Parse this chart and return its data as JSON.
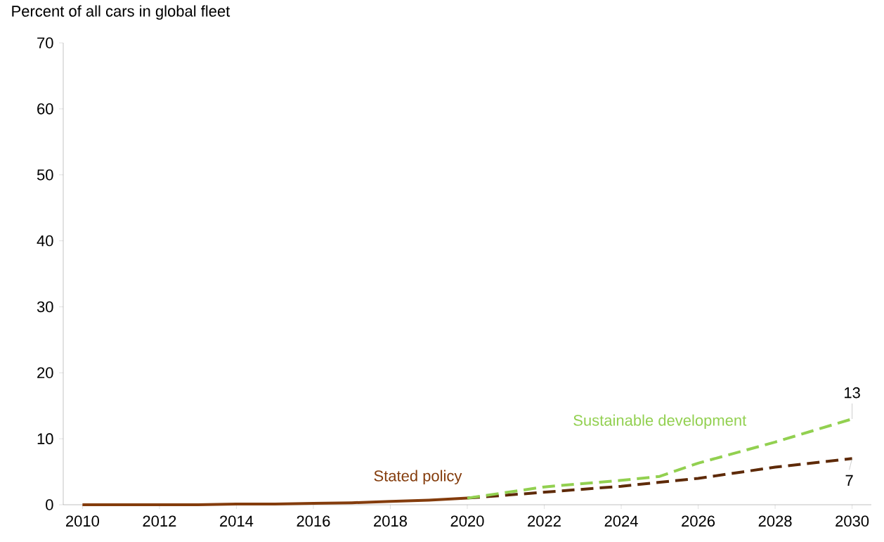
{
  "chart_data": {
    "type": "line",
    "ylabel": "Percent of all cars in global fleet",
    "xlim": [
      2009.5,
      2030.5
    ],
    "xticks": [
      2010,
      2012,
      2014,
      2016,
      2018,
      2020,
      2022,
      2024,
      2026,
      2028,
      2030
    ],
    "ylim": [
      0,
      70
    ],
    "yticks": [
      0,
      10,
      20,
      30,
      40,
      50,
      60,
      70
    ],
    "grid": false,
    "legend": false,
    "series": [
      {
        "name": "Stated policy",
        "color": "#843c0c",
        "line_style": "solid",
        "x": [
          2010,
          2011,
          2012,
          2013,
          2014,
          2015,
          2016,
          2017,
          2018,
          2019,
          2020
        ],
        "values": [
          0,
          0,
          0,
          0,
          0.1,
          0.1,
          0.2,
          0.3,
          0.5,
          0.7,
          1
        ]
      },
      {
        "color": "#5e2a08",
        "line_style": "dashed",
        "x": [
          2020,
          2022,
          2024,
          2025,
          2026,
          2028,
          2030
        ],
        "values": [
          1,
          1.9,
          2.8,
          3.4,
          4,
          5.7,
          7
        ]
      },
      {
        "name": "Sustainable development",
        "color": "#92d050",
        "line_style": "dashed",
        "x": [
          2020,
          2022,
          2024,
          2025,
          2026,
          2028,
          2030
        ],
        "values": [
          1,
          2.7,
          3.7,
          4.3,
          6.3,
          9.5,
          13
        ]
      }
    ],
    "annotations": [
      {
        "text": "13",
        "x": 2030,
        "y": 13
      },
      {
        "text": "7",
        "x": 2030,
        "y": 7
      }
    ]
  }
}
